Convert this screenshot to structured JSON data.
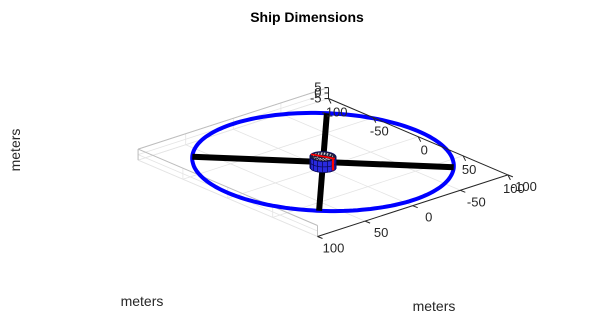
{
  "chart_data": {
    "type": "3d-line",
    "title": "Ship Dimensions",
    "xlabel": "meters",
    "ylabel": "meters",
    "zlabel": "meters",
    "xlim": [
      -100,
      100
    ],
    "ylim": [
      -100,
      100
    ],
    "zlim": [
      -5,
      5
    ],
    "x_ticks": [
      -100,
      -50,
      0,
      50,
      100
    ],
    "y_ticks": [
      -100,
      -50,
      0,
      50,
      100
    ],
    "z_ticks": [
      -5,
      0,
      5
    ],
    "x_tick_labels": [
      "-100",
      "-50",
      "0",
      "50",
      "100"
    ],
    "y_tick_labels": [
      "-100",
      "-50",
      "0",
      "50",
      "100"
    ],
    "z_tick_labels": [
      "-5",
      "0",
      "5"
    ],
    "grid": true,
    "view": "3d",
    "series": [
      {
        "mark": "ring",
        "color": "#0000ff",
        "radius": 100,
        "z": 0
      },
      {
        "mark": "spokes",
        "color": "#000000",
        "angles_deg": [
          45,
          135,
          225,
          315
        ],
        "from_radius": 10,
        "to_radius": 100,
        "z": 0
      },
      {
        "mark": "hub",
        "color": "#0000ff",
        "radius": 10,
        "z": [
          -5,
          5
        ]
      },
      {
        "mark": "hub-markers",
        "color": "#ff0000"
      }
    ]
  }
}
